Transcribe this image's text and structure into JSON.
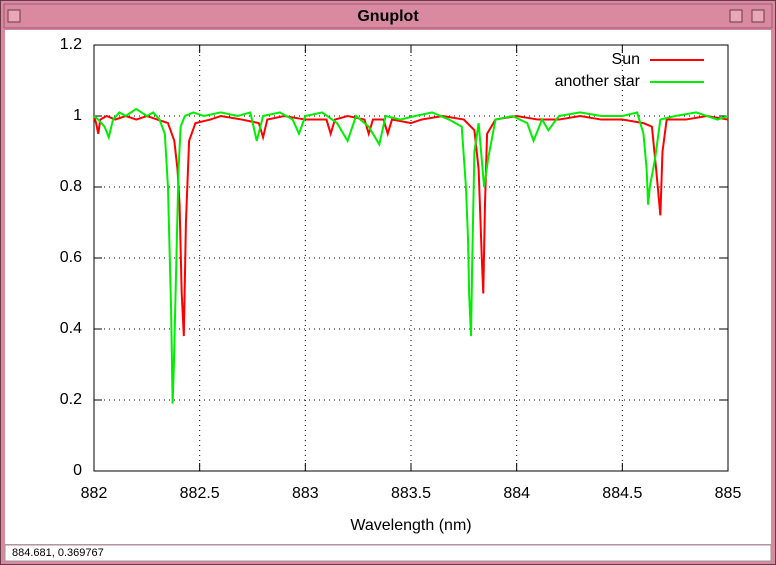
{
  "window": {
    "title": "Gnuplot",
    "status": "884.681,  0.369767"
  },
  "chart_data": {
    "type": "line",
    "xlabel": "Wavelength (nm)",
    "xlim": [
      882,
      885
    ],
    "xticks": [
      882,
      882.5,
      883,
      883.5,
      884,
      884.5,
      885
    ],
    "ylim": [
      0,
      1.2
    ],
    "yticks": [
      0,
      0.2,
      0.4,
      0.6,
      0.8,
      1,
      1.2
    ],
    "grid": true,
    "legend": "top-right",
    "series": [
      {
        "name": "Sun",
        "color": "#ff0000",
        "x": [
          882.0,
          882.01,
          882.02,
          882.03,
          882.06,
          882.1,
          882.15,
          882.2,
          882.25,
          882.3,
          882.35,
          882.38,
          882.395,
          882.405,
          882.415,
          882.425,
          882.435,
          882.45,
          882.48,
          882.55,
          882.6,
          882.7,
          882.78,
          882.8,
          882.82,
          882.9,
          883.0,
          883.1,
          883.12,
          883.14,
          883.2,
          883.28,
          883.3,
          883.32,
          883.37,
          883.39,
          883.41,
          883.5,
          883.55,
          883.65,
          883.75,
          883.8,
          883.82,
          883.835,
          883.842,
          883.85,
          883.86,
          883.9,
          884.0,
          884.1,
          884.2,
          884.3,
          884.4,
          884.5,
          884.6,
          884.64,
          884.66,
          884.68,
          884.69,
          884.71,
          884.8,
          884.9,
          885.0
        ],
        "values": [
          1.0,
          0.98,
          0.95,
          0.99,
          1.0,
          0.99,
          1.0,
          0.99,
          1.0,
          0.99,
          0.98,
          0.93,
          0.85,
          0.75,
          0.5,
          0.38,
          0.7,
          0.93,
          0.98,
          0.99,
          1.0,
          0.99,
          0.98,
          0.94,
          0.99,
          1.0,
          0.99,
          0.99,
          0.95,
          0.99,
          1.0,
          0.99,
          0.95,
          0.99,
          0.99,
          0.95,
          0.99,
          0.98,
          0.99,
          1.0,
          0.99,
          0.96,
          0.85,
          0.6,
          0.5,
          0.75,
          0.95,
          0.99,
          1.0,
          0.99,
          0.99,
          1.0,
          0.99,
          0.99,
          0.98,
          0.97,
          0.85,
          0.72,
          0.9,
          0.99,
          0.99,
          1.0,
          0.99
        ]
      },
      {
        "name": "another star",
        "color": "#00ee00",
        "x": [
          882.0,
          882.02,
          882.05,
          882.07,
          882.09,
          882.12,
          882.15,
          882.2,
          882.25,
          882.28,
          882.31,
          882.335,
          882.35,
          882.365,
          882.372,
          882.378,
          882.39,
          882.4,
          882.41,
          882.43,
          882.47,
          882.52,
          882.6,
          882.68,
          882.74,
          882.77,
          882.8,
          882.88,
          882.94,
          882.97,
          883.0,
          883.08,
          883.15,
          883.2,
          883.24,
          883.3,
          883.35,
          883.38,
          883.45,
          883.52,
          883.6,
          883.68,
          883.74,
          883.76,
          883.77,
          883.775,
          883.784,
          883.79,
          883.8,
          883.82,
          883.846,
          883.865,
          883.9,
          883.98,
          884.05,
          884.08,
          884.12,
          884.15,
          884.2,
          884.3,
          884.4,
          884.5,
          884.57,
          884.6,
          884.615,
          884.622,
          884.63,
          884.655,
          884.68,
          884.75,
          884.85,
          884.95,
          885.0
        ],
        "values": [
          1.0,
          0.99,
          0.97,
          0.94,
          0.99,
          1.01,
          1.0,
          1.02,
          1.0,
          1.01,
          0.99,
          0.95,
          0.8,
          0.45,
          0.19,
          0.3,
          0.6,
          0.85,
          0.97,
          1.0,
          1.01,
          1.0,
          1.01,
          1.0,
          1.01,
          0.93,
          1.0,
          1.01,
          0.99,
          0.95,
          1.0,
          1.01,
          0.98,
          0.93,
          1.0,
          0.97,
          0.92,
          1.0,
          0.99,
          1.0,
          1.01,
          0.99,
          0.97,
          0.8,
          0.65,
          0.5,
          0.38,
          0.6,
          0.9,
          0.98,
          0.8,
          0.88,
          0.99,
          1.0,
          0.98,
          0.93,
          0.99,
          0.96,
          1.0,
          1.01,
          1.0,
          1.0,
          1.01,
          0.95,
          0.85,
          0.75,
          0.8,
          0.88,
          0.99,
          1.0,
          1.01,
          0.99,
          1.0
        ]
      }
    ]
  }
}
